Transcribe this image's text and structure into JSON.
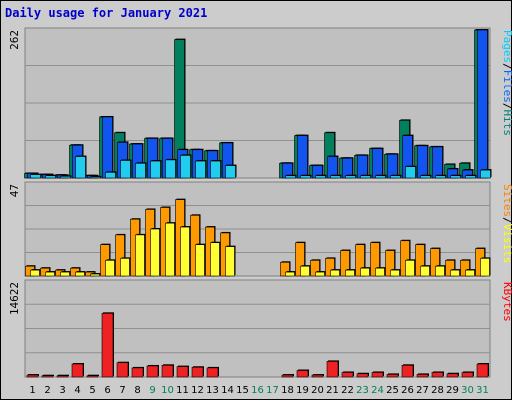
{
  "chart_data": {
    "type": "bar",
    "title": "Daily usage for January 2021",
    "categories": [
      "1",
      "2",
      "3",
      "4",
      "5",
      "6",
      "7",
      "8",
      "9",
      "10",
      "11",
      "12",
      "13",
      "14",
      "15",
      "16",
      "17",
      "18",
      "19",
      "20",
      "21",
      "22",
      "23",
      "24",
      "25",
      "26",
      "27",
      "28",
      "29",
      "30",
      "31"
    ],
    "weekend_days": [
      "9",
      "10",
      "16",
      "17",
      "23",
      "24",
      "30",
      "31"
    ],
    "panels": [
      {
        "name": "hits-files-pages",
        "ymax_label": "262",
        "ylim": [
          0,
          262
        ],
        "axis_label_parts": [
          {
            "text": "Pages",
            "color": "#00ccff"
          },
          {
            "text": "/",
            "color": "#000000"
          },
          {
            "text": "Files",
            "color": "#0066ff"
          },
          {
            "text": "/",
            "color": "#000000"
          },
          {
            "text": "Hits",
            "color": "#008080"
          }
        ],
        "series": [
          {
            "key": "Hits",
            "color": "#00805c",
            "values": [
              8,
              6,
              5,
              58,
              4,
              108,
              80,
              60,
              70,
              70,
              245,
              50,
              48,
              62,
              0,
              0,
              0,
              26,
              75,
              22,
              80,
              35,
              40,
              52,
              42,
              102,
              57,
              55,
              24,
              26,
              262
            ]
          },
          {
            "key": "Files",
            "color": "#1155ee",
            "values": [
              8,
              6,
              5,
              58,
              4,
              108,
              63,
              60,
              70,
              70,
              50,
              50,
              48,
              62,
              0,
              0,
              0,
              26,
              75,
              22,
              38,
              35,
              40,
              52,
              42,
              75,
              57,
              55,
              16,
              14,
              262
            ]
          },
          {
            "key": "Pages",
            "color": "#22ccee",
            "values": [
              6,
              4,
              3,
              38,
              2,
              10,
              31,
              26,
              30,
              32,
              40,
              30,
              30,
              22,
              0,
              0,
              0,
              4,
              4,
              4,
              4,
              4,
              4,
              4,
              4,
              20,
              4,
              4,
              4,
              4,
              14
            ]
          }
        ]
      },
      {
        "name": "visits-sites",
        "ymax_label": "47",
        "ylim": [
          0,
          47
        ],
        "axis_label_parts": [
          {
            "text": "Sites",
            "color": "#ff8000"
          },
          {
            "text": "/",
            "color": "#000000"
          },
          {
            "text": "Visits",
            "color": "#ffff00"
          }
        ],
        "series": [
          {
            "key": "Visits",
            "color": "#ff9900",
            "values": [
              5,
              4,
              3,
              4,
              2,
              16,
              21,
              29,
              34,
              35,
              39,
              31,
              25,
              22,
              0,
              0,
              0,
              7,
              17,
              8,
              9,
              13,
              16,
              17,
              13,
              18,
              16,
              14,
              8,
              8,
              14
            ]
          },
          {
            "key": "Sites",
            "color": "#ffff33",
            "values": [
              3,
              2,
              2,
              2,
              1,
              8,
              9,
              21,
              24,
              27,
              25,
              16,
              17,
              15,
              0,
              0,
              0,
              2,
              5,
              2,
              3,
              3,
              4,
              4,
              3,
              8,
              5,
              5,
              3,
              3,
              9
            ]
          }
        ]
      },
      {
        "name": "kbytes",
        "ymax_label": "14622",
        "ylim": [
          0,
          14622
        ],
        "axis_label_parts": [
          {
            "text": "KBytes",
            "color": "#ff0000"
          }
        ],
        "series": [
          {
            "key": "KBytes",
            "color": "#ee2222",
            "values": [
              300,
              200,
              200,
              2000,
              200,
              9800,
              2200,
              1400,
              1700,
              1800,
              1600,
              1500,
              1400,
              0,
              0,
              0,
              0,
              300,
              1000,
              300,
              2400,
              700,
              500,
              700,
              400,
              1800,
              400,
              700,
              500,
              700,
              2000
            ]
          }
        ]
      }
    ]
  }
}
